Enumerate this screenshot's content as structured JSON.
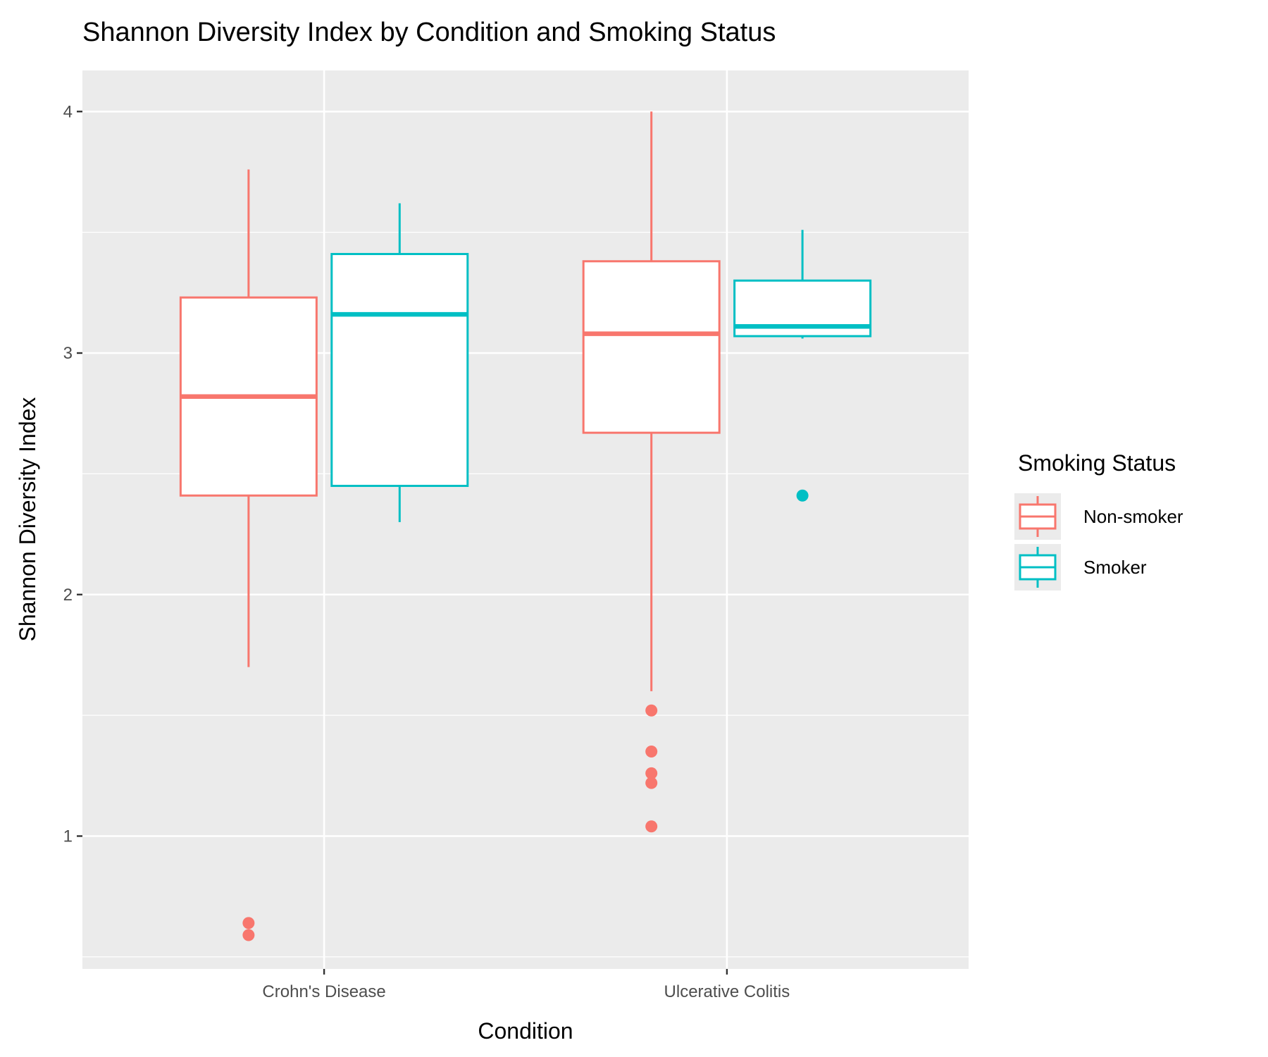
{
  "chart_data": {
    "type": "box",
    "title": "Shannon Diversity Index by Condition and Smoking Status",
    "xlabel": "Condition",
    "ylabel": "Shannon Diversity Index",
    "ylim": [
      0.45,
      4.17
    ],
    "yticks": [
      1,
      2,
      3,
      4
    ],
    "grid": true,
    "categories": [
      "Crohn's Disease",
      "Ulcerative Colitis"
    ],
    "legend": {
      "title": "Smoking Status",
      "position": "right"
    },
    "series": [
      {
        "name": "Non-smoker",
        "color": "#F8766D",
        "boxes": [
          {
            "whisker_low": 1.7,
            "q1": 2.41,
            "median": 2.82,
            "q3": 3.23,
            "whisker_high": 3.76,
            "outliers": [
              0.64,
              0.59
            ]
          },
          {
            "whisker_low": 1.6,
            "q1": 2.67,
            "median": 3.08,
            "q3": 3.38,
            "whisker_high": 4.0,
            "outliers": [
              1.52,
              1.35,
              1.26,
              1.22,
              1.04
            ]
          }
        ]
      },
      {
        "name": "Smoker",
        "color": "#00BFC4",
        "boxes": [
          {
            "whisker_low": 2.3,
            "q1": 2.45,
            "median": 3.16,
            "q3": 3.41,
            "whisker_high": 3.62,
            "outliers": []
          },
          {
            "whisker_low": 3.06,
            "q1": 3.07,
            "median": 3.11,
            "q3": 3.3,
            "whisker_high": 3.51,
            "outliers": [
              2.41
            ]
          }
        ]
      }
    ]
  }
}
